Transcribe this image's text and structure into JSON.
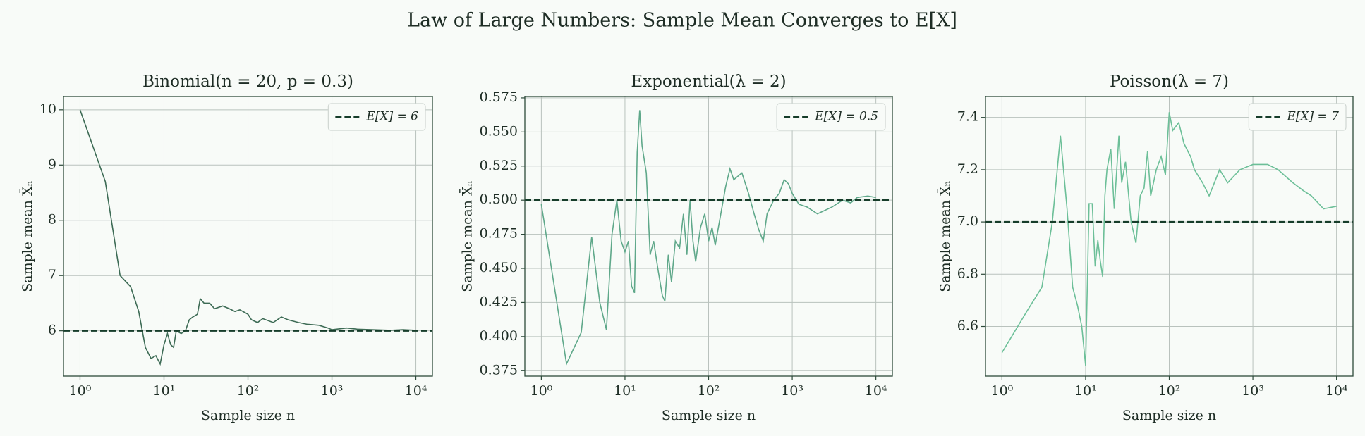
{
  "title": "Law of Large Numbers: Sample Mean Converges to E[X]",
  "chart_data": [
    {
      "type": "line",
      "title": "Binomial(n = 20, p = 0.3)",
      "xlabel": "Sample size n",
      "ylabel": "Sample mean X̄ₙ",
      "xscale": "log",
      "xlim": [
        0.635,
        15740
      ],
      "xticks": [
        {
          "value": 1,
          "label": "10⁰"
        },
        {
          "value": 10,
          "label": "10¹"
        },
        {
          "value": 100,
          "label": "10²"
        },
        {
          "value": 1000,
          "label": "10³"
        },
        {
          "value": 10000,
          "label": "10⁴"
        }
      ],
      "ylim": [
        5.18,
        10.24
      ],
      "yticks": [
        6,
        7,
        8,
        9,
        10
      ],
      "grid": true,
      "legend": "upper right",
      "hlines": [
        {
          "value": 6,
          "label": "E[X] = 6",
          "color": "#163d2a",
          "style": "dashed"
        }
      ],
      "series": [
        {
          "color": "#3d6b55",
          "x": [
            1,
            2,
            3,
            4,
            5,
            6,
            7,
            8,
            9,
            10,
            11,
            12,
            13,
            14,
            16,
            18,
            20,
            22,
            25,
            27,
            30,
            35,
            40,
            50,
            60,
            70,
            80,
            100,
            110,
            130,
            150,
            200,
            250,
            300,
            400,
            500,
            700,
            900,
            1000,
            1500,
            2000,
            3000,
            5000,
            7000,
            10000
          ],
          "values": [
            10,
            8.7,
            7.0,
            6.8,
            6.35,
            5.7,
            5.5,
            5.55,
            5.4,
            5.75,
            5.95,
            5.75,
            5.7,
            6.0,
            5.95,
            6.0,
            6.2,
            6.25,
            6.3,
            6.58,
            6.5,
            6.5,
            6.4,
            6.45,
            6.4,
            6.35,
            6.38,
            6.3,
            6.2,
            6.15,
            6.22,
            6.15,
            6.25,
            6.2,
            6.15,
            6.12,
            6.1,
            6.05,
            6.02,
            6.05,
            6.03,
            6.02,
            6.01,
            6.02,
            6.01
          ]
        }
      ]
    },
    {
      "type": "line",
      "title": "Exponential(λ = 2)",
      "xlabel": "Sample size n",
      "ylabel": "Sample mean X̄ₙ",
      "xscale": "log",
      "xlim": [
        0.635,
        15740
      ],
      "xticks": [
        {
          "value": 1,
          "label": "10⁰"
        },
        {
          "value": 10,
          "label": "10¹"
        },
        {
          "value": 100,
          "label": "10²"
        },
        {
          "value": 1000,
          "label": "10³"
        },
        {
          "value": 10000,
          "label": "10⁴"
        }
      ],
      "ylim": [
        0.371,
        0.576
      ],
      "yticks": [
        0.375,
        {
          "value": 0.4,
          "label": "0.400"
        },
        0.425,
        {
          "value": 0.45,
          "label": "0.450"
        },
        0.475,
        {
          "value": 0.5,
          "label": "0.500"
        },
        0.525,
        {
          "value": 0.55,
          "label": "0.550"
        },
        0.575
      ],
      "grid": true,
      "legend": "upper right",
      "hlines": [
        {
          "value": 0.5,
          "label": "E[X] = 0.5",
          "color": "#163d2a",
          "style": "dashed"
        }
      ],
      "series": [
        {
          "color": "#5fa88a",
          "x": [
            1,
            2,
            3,
            4,
            5,
            6,
            7,
            8,
            9,
            10,
            11,
            12,
            13,
            14,
            15,
            16,
            18,
            20,
            22,
            25,
            28,
            30,
            33,
            36,
            40,
            45,
            50,
            55,
            60,
            65,
            70,
            80,
            90,
            100,
            110,
            120,
            140,
            160,
            180,
            200,
            250,
            300,
            350,
            400,
            450,
            500,
            600,
            700,
            800,
            900,
            1000,
            1200,
            1500,
            2000,
            3000,
            4000,
            5000,
            6000,
            8000,
            10000
          ],
          "values": [
            0.497,
            0.38,
            0.403,
            0.473,
            0.425,
            0.405,
            0.475,
            0.5,
            0.47,
            0.462,
            0.47,
            0.437,
            0.432,
            0.535,
            0.566,
            0.54,
            0.52,
            0.46,
            0.47,
            0.448,
            0.43,
            0.426,
            0.46,
            0.44,
            0.47,
            0.465,
            0.49,
            0.46,
            0.5,
            0.47,
            0.455,
            0.48,
            0.49,
            0.47,
            0.48,
            0.467,
            0.49,
            0.51,
            0.523,
            0.515,
            0.52,
            0.505,
            0.49,
            0.478,
            0.47,
            0.49,
            0.5,
            0.505,
            0.515,
            0.512,
            0.505,
            0.497,
            0.495,
            0.49,
            0.495,
            0.5,
            0.498,
            0.502,
            0.503,
            0.502
          ]
        }
      ]
    },
    {
      "type": "line",
      "title": "Poisson(λ = 7)",
      "xlabel": "Sample size n",
      "ylabel": "Sample mean X̄ₙ",
      "xscale": "log",
      "xlim": [
        0.635,
        15740
      ],
      "xticks": [
        {
          "value": 1,
          "label": "10⁰"
        },
        {
          "value": 10,
          "label": "10¹"
        },
        {
          "value": 100,
          "label": "10²"
        },
        {
          "value": 1000,
          "label": "10³"
        },
        {
          "value": 10000,
          "label": "10⁴"
        }
      ],
      "ylim": [
        6.41,
        7.48
      ],
      "yticks": [
        6.6,
        6.8,
        {
          "value": 7,
          "label": "7.0"
        },
        7.2,
        7.4
      ],
      "grid": true,
      "legend": "upper right",
      "hlines": [
        {
          "value": 7,
          "label": "E[X] = 7",
          "color": "#163d2a",
          "style": "dashed"
        }
      ],
      "series": [
        {
          "color": "#6cbf98",
          "x": [
            1,
            2,
            3,
            4,
            5,
            6,
            7,
            8,
            9,
            10,
            11,
            12,
            13,
            14,
            15,
            16,
            17,
            18,
            20,
            22,
            25,
            27,
            30,
            35,
            40,
            45,
            50,
            55,
            60,
            70,
            80,
            90,
            100,
            110,
            130,
            150,
            180,
            200,
            250,
            300,
            400,
            500,
            700,
            1000,
            1500,
            2000,
            3000,
            4000,
            5000,
            7000,
            10000
          ],
          "values": [
            6.5,
            6.66,
            6.75,
            7.0,
            7.33,
            7.05,
            6.75,
            6.68,
            6.6,
            6.45,
            7.07,
            7.07,
            6.83,
            6.93,
            6.85,
            6.79,
            7.1,
            7.2,
            7.28,
            7.05,
            7.33,
            7.15,
            7.23,
            7.0,
            6.92,
            7.1,
            7.13,
            7.27,
            7.1,
            7.2,
            7.25,
            7.18,
            7.42,
            7.35,
            7.38,
            7.3,
            7.25,
            7.2,
            7.15,
            7.1,
            7.2,
            7.15,
            7.2,
            7.22,
            7.22,
            7.2,
            7.15,
            7.12,
            7.1,
            7.05,
            7.06
          ]
        }
      ]
    }
  ]
}
